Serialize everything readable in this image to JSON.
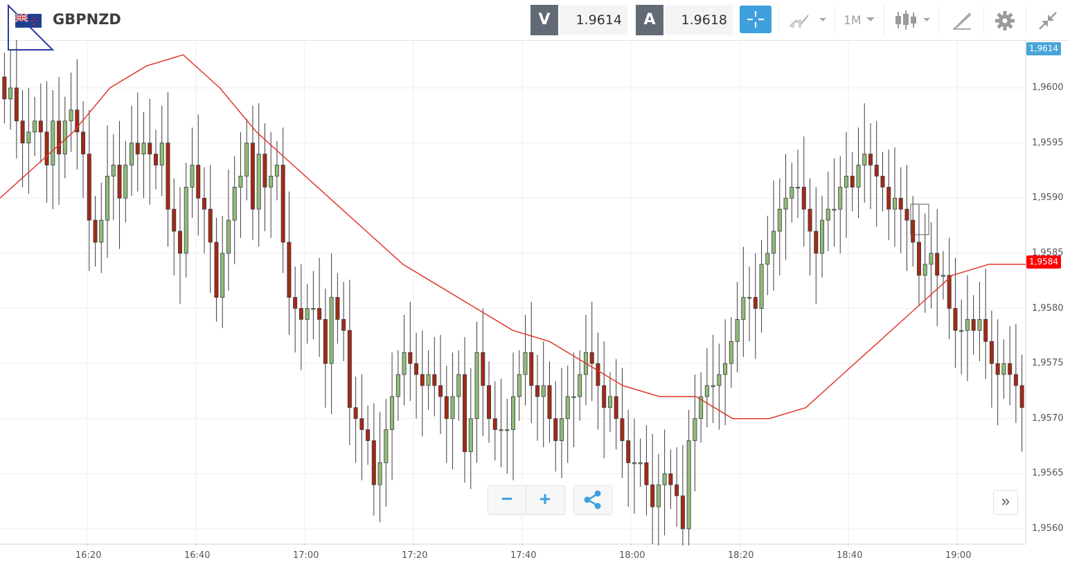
{
  "header": {
    "symbol": "GBPNZD",
    "sell_label": "V",
    "sell_value": "1.9614",
    "buy_label": "A",
    "buy_value": "1.9618",
    "timeframe": "1M"
  },
  "colors": {
    "up": "#8fbc7a",
    "down": "#a32a15",
    "ma": "#e0352b",
    "accent": "#3ea0dd",
    "current_price_tag": "#49a5d8",
    "ma_tag": "#ff0000"
  },
  "icons": [
    "flag-icon",
    "crosshair-icon",
    "chart-type-icon",
    "timeframe-dropdown-icon",
    "candles-icon",
    "drawing-icon",
    "gear-icon",
    "collapse-icon",
    "zoom-out-icon",
    "zoom-in-icon",
    "share-icon",
    "scroll-right-icon"
  ],
  "zoom": {
    "minus": "−",
    "plus": "+"
  },
  "scroll_label": "»",
  "chart_data": {
    "type": "candlestick",
    "title": "",
    "xlabel": "",
    "ylabel": "",
    "ylim": [
      1.9559,
      1.9604
    ],
    "grid": true,
    "price_ticks": [
      "1,9600",
      "1,9595",
      "1,9590",
      "1,9585",
      "1,9580",
      "1,9575",
      "1,9570",
      "1,9565",
      "1,9560"
    ],
    "time_ticks": [
      "16:20",
      "16:40",
      "17:00",
      "17:20",
      "17:40",
      "18:00",
      "18:20",
      "18:40",
      "19:00"
    ],
    "current_price_label": "1,9614",
    "ma_price_label": "1,9584",
    "candles_closes": [
      1.9599,
      1.96,
      1.9597,
      1.9595,
      1.9596,
      1.9597,
      1.9596,
      1.9593,
      1.9597,
      1.9594,
      1.9597,
      1.9598,
      1.9596,
      1.9594,
      1.9588,
      1.9586,
      1.9588,
      1.9592,
      1.9593,
      1.959,
      1.9593,
      1.9595,
      1.9594,
      1.9595,
      1.9594,
      1.9593,
      1.9595,
      1.9589,
      1.9587,
      1.9585,
      1.9591,
      1.9593,
      1.959,
      1.9589,
      1.9586,
      1.9581,
      1.9585,
      1.9588,
      1.9591,
      1.9592,
      1.9595,
      1.9589,
      1.9594,
      1.9591,
      1.9592,
      1.9593,
      1.9586,
      1.9581,
      1.958,
      1.9579,
      1.958,
      1.958,
      1.9579,
      1.9575,
      1.9581,
      1.9579,
      1.9578,
      1.9571,
      1.957,
      1.9569,
      1.9568,
      1.9564,
      1.9566,
      1.9569,
      1.9572,
      1.9574,
      1.9576,
      1.9575,
      1.9574,
      1.9573,
      1.9574,
      1.9573,
      1.9572,
      1.957,
      1.9572,
      1.9574,
      1.9567,
      1.957,
      1.9576,
      1.9573,
      1.957,
      1.9569,
      1.9569,
      1.9569,
      1.9572,
      1.9574,
      1.9576,
      1.9573,
      1.9572,
      1.9573,
      1.957,
      1.9568,
      1.957,
      1.9572,
      1.9572,
      1.9574,
      1.9576,
      1.9575,
      1.9573,
      1.9571,
      1.9572,
      1.957,
      1.9568,
      1.9566,
      1.9566,
      1.9566,
      1.9564,
      1.9562,
      1.9564,
      1.9565,
      1.9564,
      1.9563,
      1.956,
      1.9568,
      1.957,
      1.9572,
      1.9573,
      1.9573,
      1.9574,
      1.9575,
      1.9577,
      1.9579,
      1.9581,
      1.9581,
      1.958,
      1.9584,
      1.9585,
      1.9587,
      1.9589,
      1.959,
      1.9591,
      1.9591,
      1.9589,
      1.9587,
      1.9585,
      1.9588,
      1.9589,
      1.9589,
      1.9591,
      1.9592,
      1.9591,
      1.9593,
      1.9594,
      1.9593,
      1.9592,
      1.9591,
      1.9589,
      1.959,
      1.9589,
      1.9588,
      1.9586,
      1.9583,
      1.9584,
      1.9585,
      1.9583,
      1.9583,
      1.958,
      1.9578,
      1.9578,
      1.9579,
      1.9578,
      1.9579,
      1.9577,
      1.9575,
      1.9574,
      1.9575,
      1.9574,
      1.9573,
      1.9571
    ],
    "ma_series_approx": [
      1.959,
      1.9593,
      1.9596,
      1.96,
      1.9602,
      1.9603,
      1.96,
      1.9596,
      1.9593,
      1.959,
      1.9587,
      1.9584,
      1.9582,
      1.958,
      1.9578,
      1.9577,
      1.9575,
      1.9573,
      1.9572,
      1.9572,
      1.957,
      1.957,
      1.9571,
      1.9574,
      1.9577,
      1.958,
      1.9583,
      1.9584,
      1.9584
    ]
  }
}
